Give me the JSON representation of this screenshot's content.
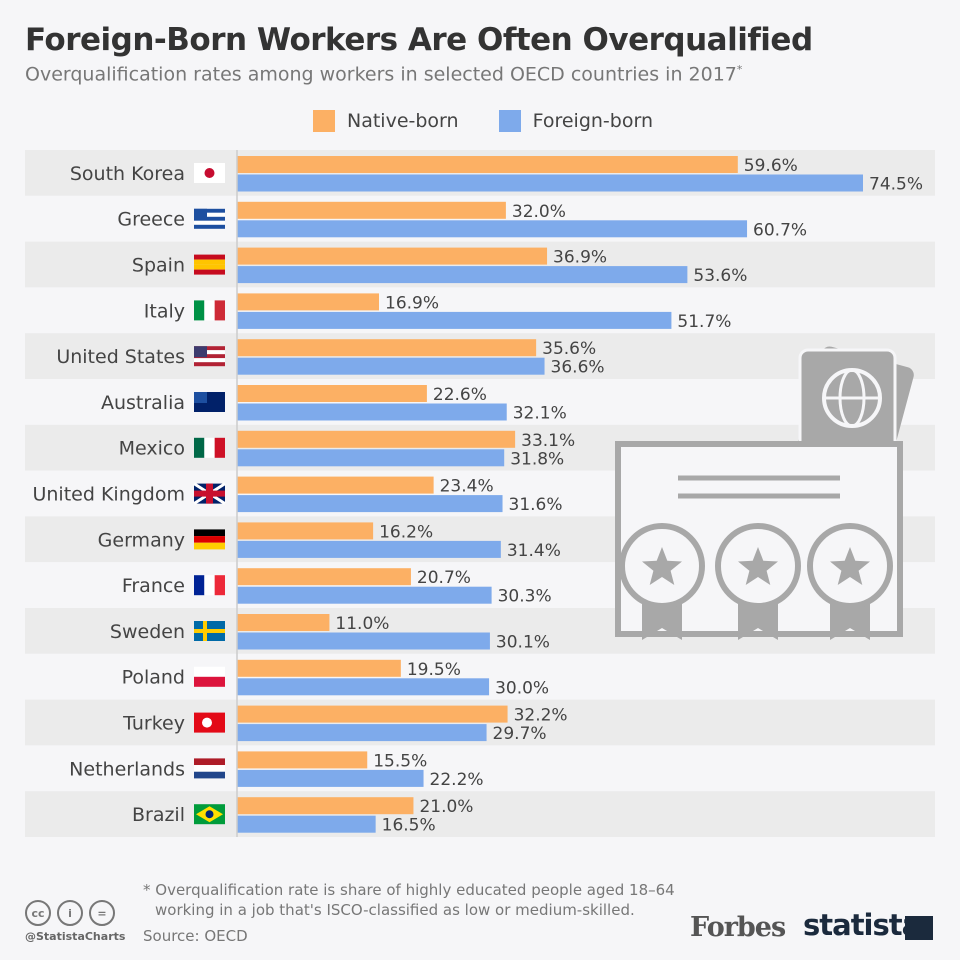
{
  "title": "Foreign-Born Workers Are Often Overqualified",
  "subtitle": "Overqualification rates among workers in selected OECD countries in 2017",
  "subtitle_mark": "*",
  "chart_data": {
    "type": "bar",
    "orientation": "horizontal",
    "value_suffix": "%",
    "xlim": [
      0,
      80
    ],
    "categories": [
      "South Korea",
      "Greece",
      "Spain",
      "Italy",
      "United States",
      "Australia",
      "Mexico",
      "United Kingdom",
      "Germany",
      "France",
      "Sweden",
      "Poland",
      "Turkey",
      "Netherlands",
      "Brazil"
    ],
    "series": [
      {
        "name": "Native-born",
        "color": "#fcb064",
        "values": [
          59.6,
          32.0,
          36.9,
          16.9,
          35.6,
          22.6,
          33.1,
          23.4,
          16.2,
          20.7,
          11.0,
          19.5,
          32.2,
          15.5,
          21.0
        ]
      },
      {
        "name": "Foreign-born",
        "color": "#7eaaeb",
        "values": [
          74.5,
          60.7,
          53.6,
          51.7,
          36.6,
          32.1,
          31.8,
          31.6,
          31.4,
          30.3,
          30.1,
          30.0,
          29.7,
          22.2,
          16.5
        ]
      }
    ],
    "legend": "top",
    "grid": false
  },
  "footnote_line1": "* Overqualification rate is share of highly educated people aged 18–64",
  "footnote_line2": "working in a job that's ISCO-classified as low or medium-skilled.",
  "source": "Source: OECD",
  "handle": "@StatistaCharts",
  "brand_forbes": "Forbes",
  "brand_statista": "statista",
  "icons": [
    "cc-icon",
    "attribution-icon",
    "no-derivatives-icon",
    "passport-certificate-illustration"
  ]
}
